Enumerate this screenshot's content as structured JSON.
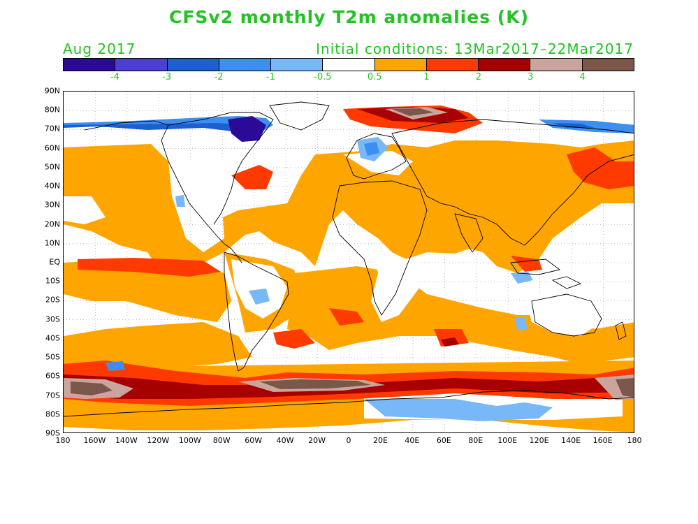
{
  "title": "CFSv2 monthly T2m anomalies (K)",
  "subtitle_left": "Aug 2017",
  "subtitle_right": "Initial conditions: 13Mar2017–22Mar2017",
  "colors": {
    "text_green": "#22c322",
    "colorbar": [
      "#2a0a96",
      "#4b3fd6",
      "#1d5fd0",
      "#3c8ff0",
      "#78b8f8",
      "#ffffff",
      "#ffa500",
      "#ff3a00",
      "#a80000",
      "#c9a59d",
      "#7a5748"
    ]
  },
  "colorbar_labels": [
    "-4",
    "-3",
    "-2",
    "-1",
    "-0.5",
    "0.5",
    "1",
    "2",
    "3",
    "4"
  ],
  "lat_labels": [
    "90N",
    "80N",
    "70N",
    "60N",
    "50N",
    "40N",
    "30N",
    "20N",
    "10N",
    "EQ",
    "10S",
    "20S",
    "30S",
    "40S",
    "50S",
    "60S",
    "70S",
    "80S",
    "90S"
  ],
  "lon_labels": [
    "180",
    "160W",
    "140W",
    "120W",
    "100W",
    "80W",
    "60W",
    "40W",
    "20W",
    "0",
    "20E",
    "40E",
    "60E",
    "80E",
    "100E",
    "120E",
    "140E",
    "160E",
    "180"
  ]
}
